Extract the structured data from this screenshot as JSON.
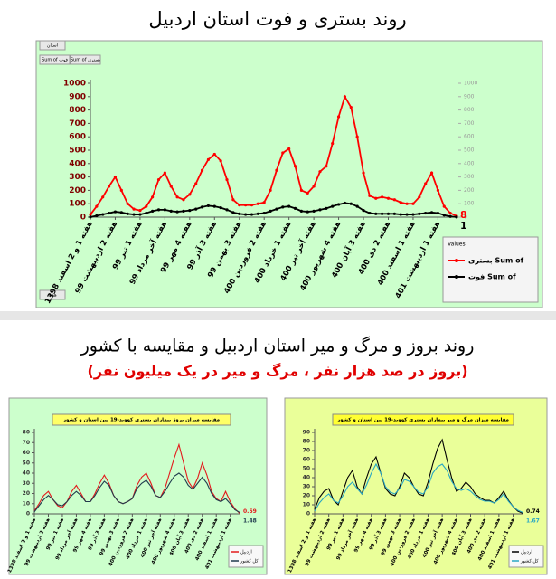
{
  "section_title": "روند بروز و مرگ و میر استان اردبیل و مقایسه با کشور",
  "section_subtitle": "(بروز در صد هزار نفر ، مرگ و میر در یک میلیون نفر)",
  "chart_data": [
    {
      "type": "line",
      "title": "روند بستری و فوت استان اردبیل",
      "background": "#ccffcc",
      "field_buttons": [
        "استان",
        "Sum of فوت",
        "Sum of بستری",
        "هفته"
      ],
      "legend_title": "Values",
      "legend": "bottom-right",
      "grid": false,
      "markers": true,
      "end_labels": true,
      "categories": [
        "هفته 1 و 2 اسفند 1398",
        null,
        null,
        null,
        "هفته 2 اردیبهشت 99",
        null,
        null,
        null,
        "هفته 1 تیر 99",
        null,
        null,
        null,
        "هفته آخر مرداد 99",
        null,
        null,
        null,
        "هفته 4 مهر 99",
        null,
        null,
        null,
        "هفته 3 آذر 99",
        null,
        null,
        null,
        "هفته 3 بهمن 99",
        null,
        null,
        null,
        "هفته 2 فروردین 400",
        null,
        null,
        null,
        "هفته 1 خرداد 400",
        null,
        null,
        null,
        "هفته آخر تیر 400",
        null,
        null,
        null,
        "هفته 4 شهریور 400",
        null,
        null,
        null,
        "هفته 3 آبان 400",
        null,
        null,
        null,
        "هفته 2 دی 400",
        null,
        null,
        null,
        "هفته 1 اسفند 400",
        null,
        null,
        null,
        "هفته 1 اردیبهشت 401",
        null,
        null,
        null
      ],
      "ylim": [
        0,
        1000
      ],
      "yticks": [
        0,
        100,
        200,
        300,
        400,
        500,
        600,
        700,
        800,
        900,
        1000
      ],
      "y2lim": [
        0,
        1000
      ],
      "y2ticks": [
        0,
        100,
        200,
        300,
        400,
        500,
        600,
        700,
        800,
        900,
        1000
      ],
      "series": [
        {
          "name": "بستری Sum of",
          "color": "#ff0000",
          "values": [
            20,
            80,
            150,
            230,
            300,
            200,
            100,
            60,
            50,
            80,
            150,
            280,
            330,
            230,
            150,
            130,
            170,
            250,
            350,
            430,
            470,
            420,
            280,
            130,
            90,
            90,
            90,
            100,
            110,
            200,
            350,
            480,
            510,
            380,
            200,
            180,
            230,
            340,
            380,
            550,
            750,
            900,
            820,
            600,
            330,
            160,
            140,
            150,
            140,
            130,
            110,
            100,
            100,
            150,
            250,
            330,
            200,
            80,
            30,
            8
          ]
        },
        {
          "name": "فوت Sum of",
          "color": "#000000",
          "values": [
            1,
            10,
            20,
            30,
            40,
            35,
            25,
            20,
            20,
            30,
            45,
            55,
            55,
            45,
            40,
            45,
            50,
            60,
            75,
            85,
            80,
            70,
            55,
            35,
            25,
            20,
            20,
            25,
            30,
            45,
            60,
            75,
            80,
            65,
            45,
            40,
            45,
            55,
            65,
            80,
            95,
            105,
            100,
            80,
            50,
            30,
            25,
            25,
            25,
            25,
            20,
            20,
            20,
            25,
            30,
            35,
            30,
            15,
            5,
            1
          ]
        }
      ]
    },
    {
      "type": "line",
      "title": "مقایسه میزان بروز بیماران بستری کووید-19 بین استان و کشور",
      "background": "#ccffcc",
      "title_background": "#ffff66",
      "legend": "bottom-right",
      "grid": false,
      "markers": false,
      "end_labels": true,
      "categories": [
        "هفته 1 و 2 اسفند 1398",
        null,
        null,
        "هفته 2 اردیبهشت 99",
        null,
        null,
        "هفته 1 تیر 99",
        null,
        null,
        "هفته آخر مرداد 99",
        null,
        null,
        "هفته 4 مهر 99",
        null,
        null,
        "هفته 3 آذر 99",
        null,
        null,
        "هفته 3 بهمن 99",
        null,
        null,
        "هفته 2 فروردین 400",
        null,
        null,
        "هفته 1 خرداد 400",
        null,
        null,
        "هفته آخر تیر 400",
        null,
        null,
        "هفته 4 شهریور 400",
        null,
        null,
        "هفته 3 آبان 400",
        null,
        null,
        "هفته 2 دی 400",
        null,
        null,
        "هفته 1 اسفند 400",
        null,
        null,
        "هفته 1 اردیبهشت 401",
        null,
        null
      ],
      "ylim": [
        0,
        80
      ],
      "yticks": [
        0,
        10,
        20,
        30,
        40,
        50,
        60,
        70,
        80
      ],
      "series": [
        {
          "name": "اردبیل",
          "color": "#e31a1c",
          "values": [
            3,
            10,
            18,
            22,
            14,
            8,
            6,
            12,
            22,
            28,
            20,
            12,
            12,
            20,
            30,
            38,
            30,
            18,
            12,
            10,
            12,
            15,
            28,
            36,
            40,
            30,
            18,
            16,
            25,
            40,
            55,
            68,
            50,
            32,
            25,
            35,
            50,
            38,
            22,
            15,
            12,
            22,
            12,
            5,
            0.59
          ]
        },
        {
          "name": "کل کشور",
          "color": "#1f3b4d",
          "values": [
            2,
            8,
            14,
            18,
            14,
            9,
            8,
            12,
            18,
            22,
            18,
            12,
            12,
            18,
            26,
            32,
            28,
            18,
            12,
            10,
            12,
            15,
            25,
            30,
            33,
            27,
            18,
            16,
            22,
            30,
            37,
            40,
            36,
            28,
            24,
            30,
            36,
            30,
            20,
            14,
            12,
            15,
            10,
            4,
            1.48
          ]
        }
      ]
    },
    {
      "type": "line",
      "title": "مقایسه میزان مرگ و میر بیماران بستری کووید-19 بین استان و کشور",
      "background": "#eaff99",
      "title_background": "#ffff33",
      "legend": "bottom-right",
      "grid": false,
      "markers": false,
      "end_labels": true,
      "categories": [
        "هفته 1 و 2 اسفند 1398",
        null,
        null,
        "هفته 2 اردیبهشت 99",
        null,
        null,
        "هفته 1 تیر 99",
        null,
        null,
        "هفته آخر مرداد 99",
        null,
        null,
        "هفته 4 مهر 99",
        null,
        null,
        "هفته 3 آذر 99",
        null,
        null,
        "هفته 3 بهمن 99",
        null,
        null,
        "هفته 2 فروردین 400",
        null,
        null,
        "هفته 1 خرداد 400",
        null,
        null,
        "هفته آخر تیر 400",
        null,
        null,
        "هفته 4 شهریور 400",
        null,
        null,
        "هفته 3 آبان 400",
        null,
        null,
        "هفته 2 دی 400",
        null,
        null,
        "هفته 1 اسفند 400",
        null,
        null,
        "هفته 1 اردیبهشت 401",
        null,
        null
      ],
      "ylim": [
        0,
        90
      ],
      "yticks": [
        0,
        10,
        20,
        30,
        40,
        50,
        60,
        70,
        80,
        90
      ],
      "series": [
        {
          "name": "اردبیل",
          "color": "#000000",
          "values": [
            5,
            18,
            25,
            28,
            15,
            10,
            25,
            40,
            48,
            30,
            22,
            40,
            55,
            63,
            45,
            28,
            22,
            20,
            30,
            45,
            40,
            30,
            22,
            20,
            35,
            55,
            72,
            82,
            60,
            40,
            25,
            28,
            35,
            30,
            22,
            18,
            15,
            15,
            12,
            18,
            25,
            15,
            8,
            3,
            0.74
          ]
        },
        {
          "name": "کل کشور",
          "color": "#2aa8c4",
          "values": [
            3,
            12,
            18,
            22,
            15,
            12,
            20,
            30,
            35,
            28,
            22,
            32,
            45,
            55,
            45,
            30,
            24,
            22,
            28,
            38,
            36,
            30,
            24,
            22,
            30,
            45,
            52,
            55,
            48,
            36,
            28,
            26,
            28,
            25,
            20,
            16,
            14,
            14,
            12,
            16,
            22,
            14,
            8,
            4,
            1.67
          ]
        }
      ]
    }
  ]
}
